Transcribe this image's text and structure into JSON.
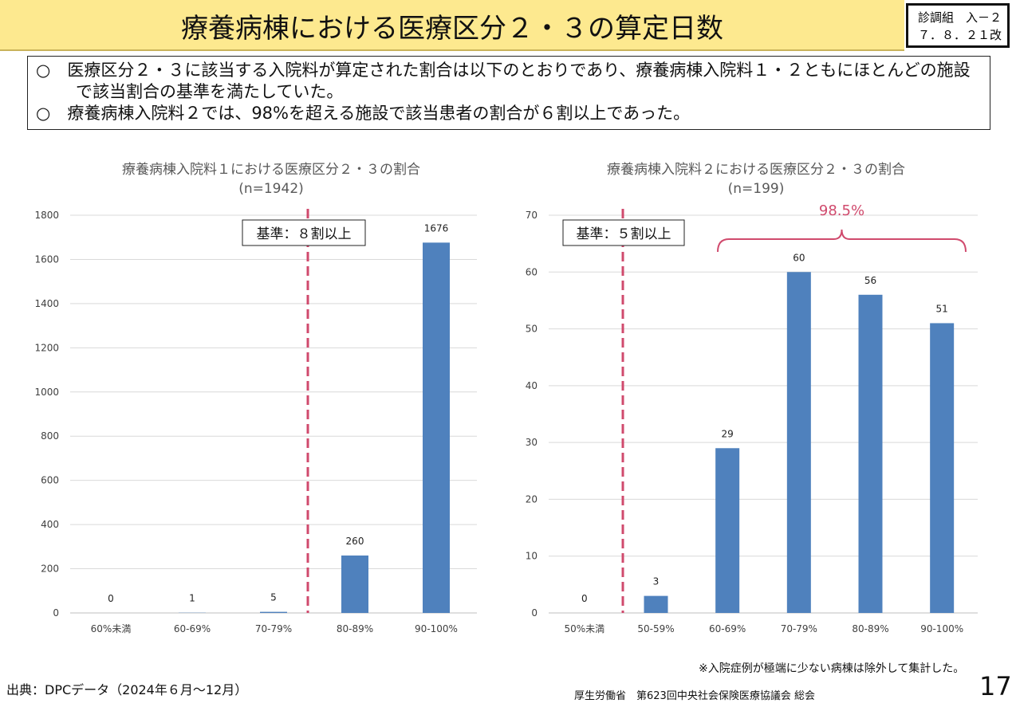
{
  "header": {
    "title": "療養病棟における医療区分２・３の算定日数",
    "badge_line1": "診調組　入－２",
    "badge_line2": "７．８．２１改"
  },
  "summary": [
    "○　医療区分２・３に該当する入院料が算定された割合は以下のとおりであり、療養病棟入院料１・２ともにほとんどの施設で該当割合の基準を満たしていた。",
    "○　療養病棟入院料２では、98%を超える施設で該当患者の割合が６割以上であった。"
  ],
  "footer": {
    "source": "出典：DPCデータ（2024年６月～12月）",
    "note": "※入院症例が極端に少ない病棟は除外して集計した。",
    "org": "厚生労働省　第623回中央社会保険医療協議会 総会",
    "page": "17"
  },
  "colors": {
    "bar": "#4f81bd",
    "threshold": "#d04a6d",
    "title_text": "#595959"
  },
  "chart_data": [
    {
      "type": "bar",
      "title": "療養病棟入院料１における医療区分２・３の割合",
      "subtitle": "(n=1942)",
      "categories": [
        "60%未満",
        "60-69%",
        "70-79%",
        "80-89%",
        "90-100%"
      ],
      "values": [
        0,
        1,
        5,
        260,
        1676
      ],
      "ylim": [
        0,
        1800
      ],
      "ytick_step": 200,
      "grid": true,
      "threshold_label": "基準：８割以上",
      "threshold_between": [
        2,
        3
      ]
    },
    {
      "type": "bar",
      "title": "療養病棟入院料２における医療区分２・３の割合",
      "subtitle": "(n=199)",
      "categories": [
        "50%未満",
        "50-59%",
        "60-69%",
        "70-79%",
        "80-89%",
        "90-100%"
      ],
      "values": [
        0,
        3,
        29,
        60,
        56,
        51
      ],
      "ylim": [
        0,
        70
      ],
      "ytick_step": 10,
      "grid": true,
      "threshold_label": "基準：５割以上",
      "threshold_between": [
        0,
        1
      ],
      "bracket_label": "98.5%",
      "bracket_range": [
        2,
        5
      ]
    }
  ]
}
